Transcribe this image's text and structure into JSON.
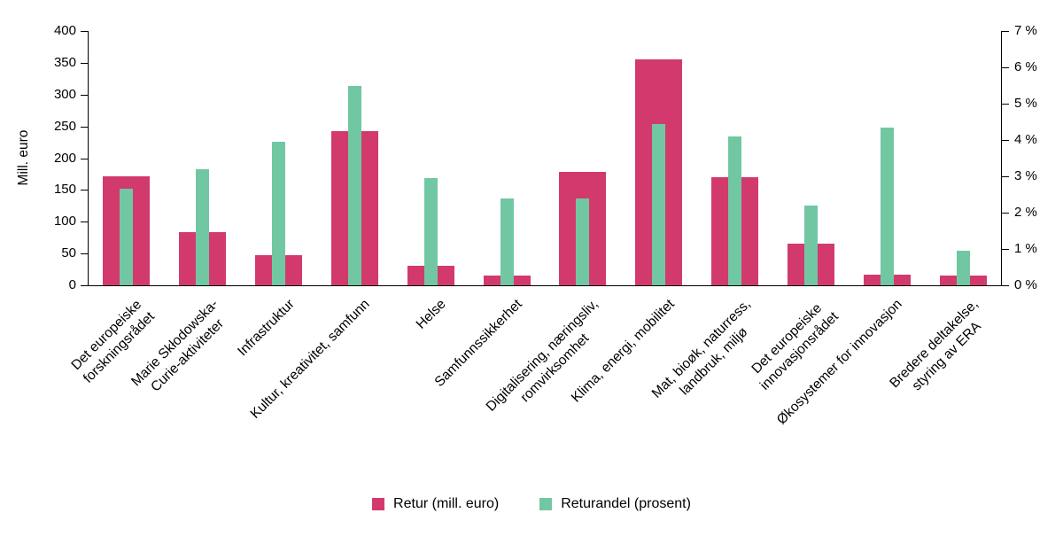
{
  "chart_data": {
    "type": "bar",
    "title": "",
    "ylabel_left": "Mill. euro",
    "axis_left": {
      "min": 0,
      "max": 400,
      "ticks": [
        0,
        50,
        100,
        150,
        200,
        250,
        300,
        350,
        400
      ]
    },
    "axis_right": {
      "min": 0,
      "max": 7,
      "tick_labels": [
        "0 %",
        "1 %",
        "2 %",
        "3 %",
        "4 %",
        "5 %",
        "6 %",
        "7 %"
      ]
    },
    "categories": [
      "Det europeiske\nforskningsrådet",
      "Marie Skłodowska-\nCurie-aktiviteter",
      "Infrastruktur",
      "Kultur, kreativitet, samfunn",
      "Helse",
      "Samfunnssikkerhet",
      "Digitalisering, næringsliv,\nromvirksomhet",
      "Klima, energi, mobilitet",
      "Mat, bioøk, naturress,\nlandbruk, miljø",
      "Det europeiske\ninnovasjonsrådet",
      "Økosystemer for innovasjon",
      "Bredere deltakelse,\nstyring av ERA"
    ],
    "series": [
      {
        "name": "Retur (mill. euro)",
        "axis": "left",
        "color": "#d23a6e",
        "values": [
          172,
          84,
          48,
          242,
          30,
          15,
          179,
          355,
          170,
          65,
          17,
          15
        ]
      },
      {
        "name": "Returandel (prosent)",
        "axis": "right",
        "color": "#72c7a3",
        "values": [
          2.65,
          3.2,
          3.95,
          5.5,
          2.95,
          2.4,
          2.4,
          4.45,
          4.1,
          2.2,
          4.35,
          0.95
        ]
      }
    ],
    "legend_position": "bottom",
    "grid": false,
    "axis_color": "#000000"
  }
}
